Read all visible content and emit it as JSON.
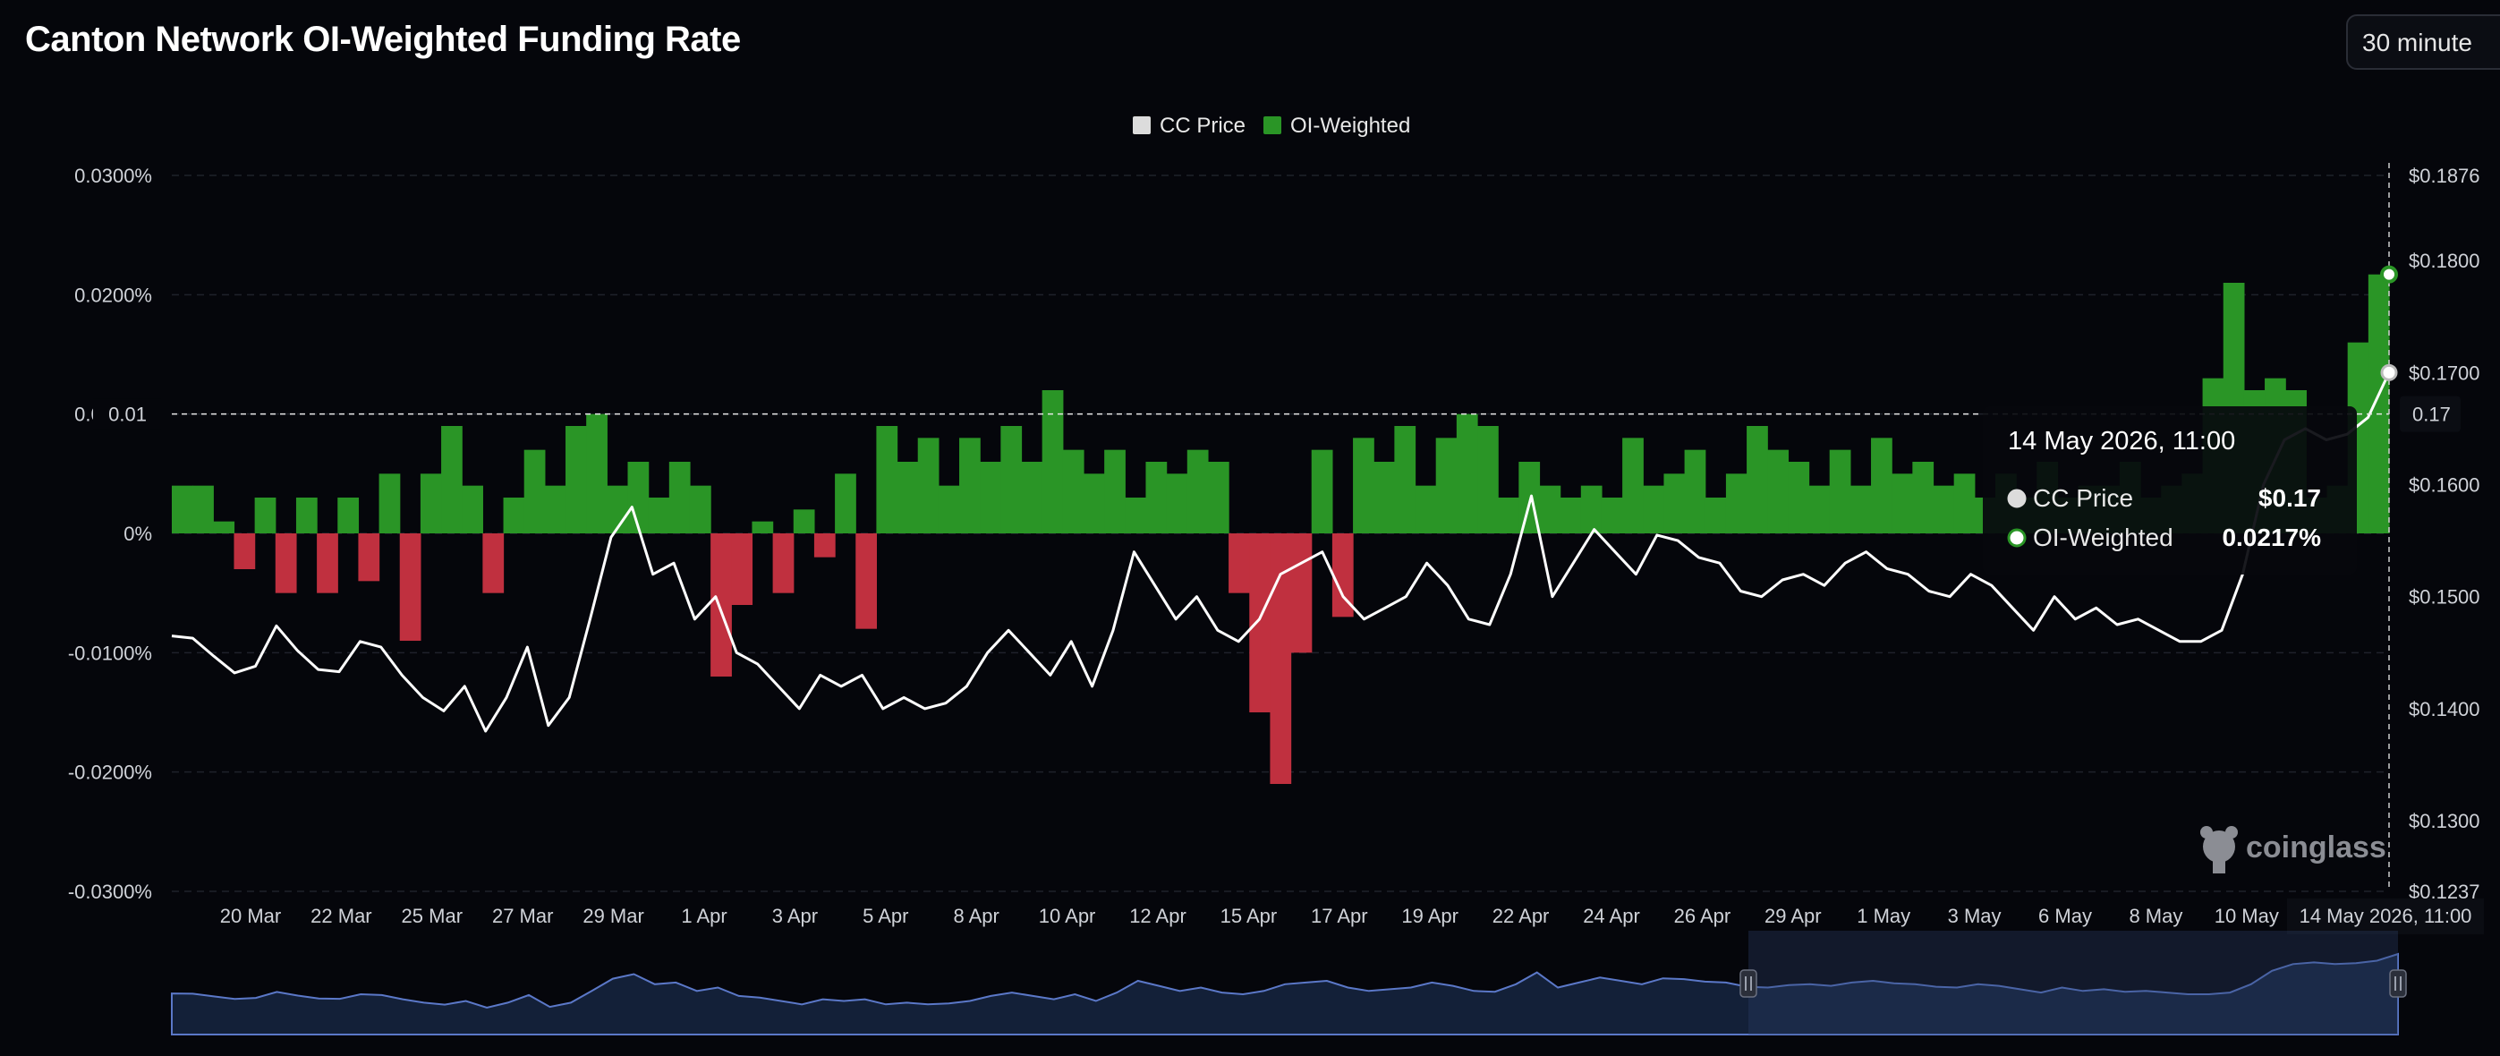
{
  "title": "Canton Network OI-Weighted Funding Rate",
  "interval_select": {
    "value": "30 minute"
  },
  "colors": {
    "background": "#05060b",
    "price_line": "#ffffff",
    "funding_positive": "#2a9526",
    "funding_negative": "#c0303f",
    "navigator": "#132038",
    "navigator_line": "#5b78c8"
  },
  "icons": {
    "brand": "coingl-logo-icon",
    "handles": "drag-handle-icon"
  },
  "chart_data": {
    "type": "area",
    "legend": {
      "position": "top-center",
      "entries": [
        "CC Price",
        "OI-Weighted"
      ]
    },
    "y_left": {
      "ticks": [
        "0.0300%",
        "0.0200%",
        "0.0100%",
        "0%",
        "-0.0100%",
        "-0.0200%",
        "-0.0300%"
      ],
      "range": [
        -0.03,
        0.03
      ]
    },
    "y_right": {
      "ticks": [
        "$0.1876",
        "$0.1800",
        "$0.1700",
        "$0.1600",
        "$0.1500",
        "$0.1400",
        "$0.1300",
        "$0.1237"
      ],
      "range": [
        0.1237,
        0.1876
      ]
    },
    "x_ticks": [
      "20 Mar",
      "22 Mar",
      "25 Mar",
      "27 Mar",
      "29 Mar",
      "1 Apr",
      "3 Apr",
      "5 Apr",
      "8 Apr",
      "10 Apr",
      "12 Apr",
      "15 Apr",
      "17 Apr",
      "19 Apr",
      "22 Apr",
      "24 Apr",
      "26 Apr",
      "29 Apr",
      "1 May",
      "3 May",
      "6 May",
      "8 May",
      "10 May"
    ],
    "crosshair": {
      "y_label": "0.01",
      "price_label": "0.17",
      "x_label": "14 May 2026, 11:00"
    },
    "grid": true,
    "series": [
      {
        "name": "OI-Weighted",
        "unit": "%",
        "values": [
          0.004,
          0.004,
          0.001,
          -0.003,
          0.003,
          -0.005,
          0.003,
          -0.005,
          0.003,
          -0.004,
          0.005,
          -0.009,
          0.005,
          0.009,
          0.004,
          -0.005,
          0.003,
          0.007,
          0.004,
          0.009,
          0.01,
          0.004,
          0.006,
          0.003,
          0.006,
          0.004,
          -0.012,
          -0.006,
          0.001,
          -0.005,
          0.002,
          -0.002,
          0.005,
          -0.008,
          0.009,
          0.006,
          0.008,
          0.004,
          0.008,
          0.006,
          0.009,
          0.006,
          0.012,
          0.007,
          0.005,
          0.007,
          0.003,
          0.006,
          0.005,
          0.007,
          0.006,
          -0.005,
          -0.015,
          -0.021,
          -0.01,
          0.007,
          -0.007,
          0.008,
          0.006,
          0.009,
          0.004,
          0.008,
          0.01,
          0.009,
          0.003,
          0.006,
          0.004,
          0.003,
          0.004,
          0.003,
          0.008,
          0.004,
          0.005,
          0.007,
          0.003,
          0.005,
          0.009,
          0.007,
          0.006,
          0.004,
          0.007,
          0.004,
          0.008,
          0.005,
          0.006,
          0.004,
          0.005,
          0.003,
          0.005,
          0.003,
          0.006,
          0.003,
          0.004,
          0.004,
          0.006,
          0.003,
          0.004,
          0.005,
          0.013,
          0.021,
          0.012,
          0.013,
          0.012,
          0.003,
          0.004,
          0.016,
          0.0217
        ]
      },
      {
        "name": "CC Price",
        "unit": "$",
        "values": [
          0.1465,
          0.1463,
          0.1447,
          0.1432,
          0.1438,
          0.1474,
          0.1452,
          0.1435,
          0.1433,
          0.146,
          0.1455,
          0.143,
          0.141,
          0.1398,
          0.142,
          0.138,
          0.141,
          0.1455,
          0.1385,
          0.141,
          0.148,
          0.1553,
          0.158,
          0.152,
          0.153,
          0.148,
          0.15,
          0.145,
          0.144,
          0.142,
          0.14,
          0.143,
          0.142,
          0.143,
          0.14,
          0.141,
          0.14,
          0.1405,
          0.142,
          0.145,
          0.147,
          0.145,
          0.143,
          0.146,
          0.142,
          0.147,
          0.154,
          0.151,
          0.148,
          0.15,
          0.147,
          0.146,
          0.148,
          0.152,
          0.153,
          0.154,
          0.15,
          0.148,
          0.149,
          0.15,
          0.153,
          0.151,
          0.148,
          0.1475,
          0.152,
          0.159,
          0.15,
          0.153,
          0.156,
          0.154,
          0.152,
          0.1555,
          0.155,
          0.1535,
          0.153,
          0.1505,
          0.15,
          0.1515,
          0.152,
          0.151,
          0.153,
          0.154,
          0.1525,
          0.152,
          0.1505,
          0.15,
          0.152,
          0.151,
          0.149,
          0.147,
          0.15,
          0.148,
          0.149,
          0.1475,
          0.148,
          0.147,
          0.146,
          0.146,
          0.147,
          0.152,
          0.16,
          0.164,
          0.165,
          0.164,
          0.1645,
          0.166,
          0.17
        ]
      }
    ]
  },
  "tooltip": {
    "title": "14 May 2026, 11:00",
    "rows": [
      {
        "label": "CC Price",
        "value": "$0.17"
      },
      {
        "label": "OI-Weighted",
        "value": "0.0217%"
      }
    ]
  },
  "watermark": "coinglass"
}
